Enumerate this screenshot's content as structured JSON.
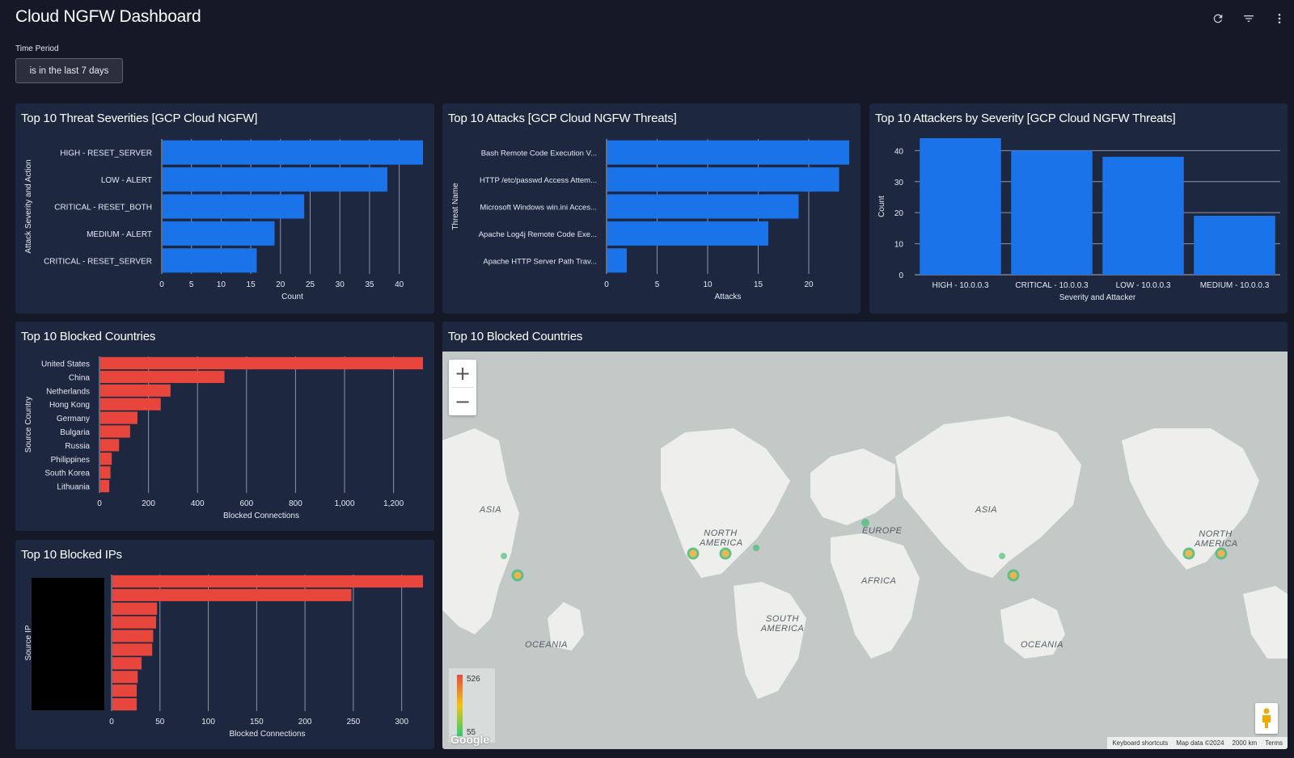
{
  "header": {
    "title": "Cloud NGFW Dashboard",
    "icons": [
      "refresh-icon",
      "filter-icon",
      "more-vert-icon"
    ]
  },
  "filter": {
    "label": "Time Period",
    "value": "is in the last 7 days"
  },
  "colors": {
    "bg": "#141827",
    "tile": "#1d2740",
    "blue_bar": "#1a73e8",
    "red_bar": "#e8453c",
    "map_bg": "#c3c9c7"
  },
  "tiles": {
    "severities": {
      "title": "Top 10 Threat Severities [GCP Cloud NGFW]"
    },
    "attacks": {
      "title": "Top 10 Attacks [GCP Cloud NGFW Threats]"
    },
    "attackers": {
      "title": "Top 10 Attackers by Severity [GCP Cloud NGFW Threats]"
    },
    "countries": {
      "title": "Top 10 Blocked Countries"
    },
    "ips": {
      "title": "Top 10 Blocked IPs"
    },
    "map": {
      "title": "Top 10 Blocked Countries"
    }
  },
  "chart_data": [
    {
      "id": "severities",
      "type": "bar",
      "orientation": "horizontal",
      "color": "#1a73e8",
      "categories": [
        "HIGH - RESET_SERVER",
        "LOW - ALERT",
        "CRITICAL - RESET_BOTH",
        "MEDIUM - ALERT",
        "CRITICAL - RESET_SERVER"
      ],
      "values": [
        44,
        38,
        24,
        19,
        16
      ],
      "xlabel": "Count",
      "ylabel": "Attack Severity and Action",
      "xlim": [
        0,
        44
      ],
      "ticks": [
        0,
        5,
        10,
        15,
        20,
        25,
        30,
        35,
        40
      ],
      "grid": true
    },
    {
      "id": "attacks",
      "type": "bar",
      "orientation": "horizontal",
      "color": "#1a73e8",
      "categories": [
        "Bash Remote Code Execution V...",
        "HTTP /etc/passwd Access Attem...",
        "Microsoft Windows win.ini Acces...",
        "Apache Log4j Remote Code Exe...",
        "Apache HTTP Server Path Trav..."
      ],
      "values": [
        24,
        23,
        19,
        16,
        2
      ],
      "xlabel": "Attacks",
      "ylabel": "Threat Name",
      "xlim": [
        0,
        24
      ],
      "ticks": [
        0,
        5,
        10,
        15,
        20
      ],
      "grid": true
    },
    {
      "id": "attackers",
      "type": "bar",
      "orientation": "vertical",
      "color": "#1a73e8",
      "categories": [
        "HIGH - 10.0.0.3",
        "CRITICAL - 10.0.0.3",
        "LOW - 10.0.0.3",
        "MEDIUM - 10.0.0.3"
      ],
      "values": [
        44,
        40,
        38,
        19
      ],
      "xlabel": "Severity and Attacker",
      "ylabel": "Count",
      "ylim": [
        0,
        44
      ],
      "ticks": [
        0,
        10,
        20,
        30,
        40
      ],
      "grid": true
    },
    {
      "id": "countries",
      "type": "bar",
      "orientation": "horizontal",
      "color": "#e8453c",
      "categories": [
        "United States",
        "China",
        "Netherlands",
        "Hong Kong",
        "Germany",
        "Bulgaria",
        "Russia",
        "Philippines",
        "South Korea",
        "Lithuania"
      ],
      "values": [
        1320,
        510,
        290,
        250,
        155,
        125,
        80,
        50,
        45,
        40
      ],
      "tick_labels": [
        "0",
        "200",
        "400",
        "600",
        "800",
        "1,000",
        "1,200"
      ],
      "xlabel": "Blocked Connections",
      "ylabel": "Source Country",
      "xlim": [
        0,
        1320
      ],
      "ticks": [
        0,
        200,
        400,
        600,
        800,
        1000,
        1200
      ],
      "grid": true
    },
    {
      "id": "ips",
      "type": "bar",
      "orientation": "horizontal",
      "color": "#e8453c",
      "categories": [
        "",
        "",
        "",
        "",
        "",
        "",
        "",
        "",
        "",
        ""
      ],
      "values": [
        322,
        248,
        47,
        46,
        43,
        42,
        31,
        27,
        26,
        26
      ],
      "xlabel": "Blocked Connections",
      "ylabel": "Source IP",
      "xlim": [
        0,
        322
      ],
      "ticks": [
        0,
        50,
        100,
        150,
        200,
        250,
        300
      ],
      "grid": true
    }
  ],
  "map": {
    "zoom_in": "+",
    "zoom_out": "−",
    "labels": [
      "ASIA",
      "NORTH AMERICA",
      "EUROPE",
      "AFRICA",
      "SOUTH AMERICA",
      "OCEANIA",
      "ASIA",
      "OCEANIA",
      "NORTH AMERICA"
    ],
    "legend_max": "526",
    "legend_min": "55",
    "google": "Google",
    "attribution": [
      "Keyboard shortcuts",
      "Map data ©2024",
      "2000 km",
      "Terms"
    ]
  }
}
